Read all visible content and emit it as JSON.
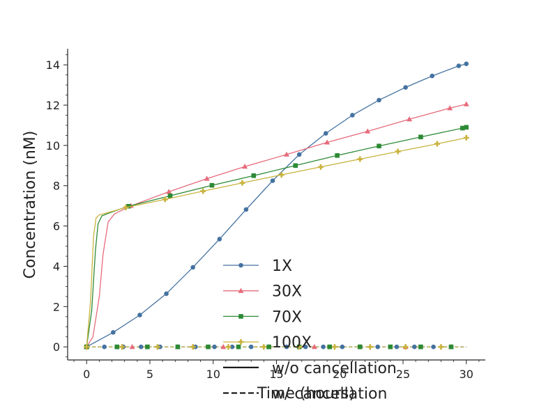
{
  "chart_data": {
    "type": "line",
    "xlabel": "Time (hours)",
    "ylabel": "Concentration (nM)",
    "xlim": [
      -1.5,
      31.5
    ],
    "ylim": [
      -0.65,
      14.8
    ],
    "xticks": [
      0,
      5,
      10,
      15,
      20,
      25,
      30
    ],
    "yticks": [
      0,
      2,
      4,
      6,
      8,
      10,
      12,
      14
    ],
    "x_minor_step": 1,
    "y_minor_step": 0.5,
    "grid": false,
    "legend_position": "lower-center",
    "series": [
      {
        "name": "1X",
        "color": "#4472a0",
        "marker": "circle",
        "x": [
          0,
          2.1,
          4.2,
          6.3,
          8.4,
          10.5,
          12.6,
          14.7,
          16.8,
          18.9,
          21,
          23.1,
          25.2,
          27.3,
          29.4,
          30
        ],
        "y": [
          0,
          0.72,
          1.58,
          2.64,
          3.95,
          5.35,
          6.82,
          8.25,
          9.55,
          10.6,
          11.5,
          12.25,
          12.88,
          13.45,
          13.95,
          14.05
        ]
      },
      {
        "name": "30X",
        "color": "#e66b7b",
        "marker": "triangle",
        "x": [
          0,
          0.5,
          1,
          1.3,
          1.7,
          2.2,
          3.5,
          6.5,
          9.5,
          12.5,
          15.8,
          19,
          22.2,
          25.5,
          28.7,
          30
        ],
        "y": [
          0,
          0.5,
          2.5,
          4.6,
          6.2,
          6.6,
          7,
          7.7,
          8.35,
          8.95,
          9.55,
          10.15,
          10.7,
          11.3,
          11.85,
          12.05
        ]
      },
      {
        "name": "70X",
        "color": "#2c8a35",
        "marker": "square",
        "x": [
          0,
          0.4,
          0.7,
          0.9,
          1.2,
          1.8,
          3.3,
          6.6,
          9.9,
          13.2,
          16.5,
          19.8,
          23.1,
          26.4,
          29.7,
          30
        ],
        "y": [
          0,
          1.8,
          4.8,
          6.1,
          6.5,
          6.65,
          6.98,
          7.5,
          8.02,
          8.5,
          9.0,
          9.5,
          9.97,
          10.42,
          10.86,
          10.9
        ]
      },
      {
        "name": "100X",
        "color": "#c9b33e",
        "marker": "plus",
        "x": [
          0,
          0.3,
          0.55,
          0.75,
          1,
          1.6,
          3.1,
          6.2,
          9.2,
          12.3,
          15.4,
          18.5,
          21.6,
          24.6,
          27.7,
          30
        ],
        "y": [
          0,
          2.2,
          5.5,
          6.4,
          6.55,
          6.65,
          6.92,
          7.32,
          7.73,
          8.14,
          8.54,
          8.93,
          9.32,
          9.7,
          10.08,
          10.38
        ]
      },
      {
        "name": "w/o cancellation",
        "color": "#000000",
        "marker": "none",
        "dash": "solid",
        "x": [
          0,
          30
        ],
        "y": [
          0,
          0
        ]
      },
      {
        "name": "w/ cancellation",
        "color": "#000000",
        "marker": "none",
        "dash": "dashed",
        "x": [
          0,
          30
        ],
        "y": [
          0,
          0
        ]
      }
    ],
    "cancellation_markers": {
      "1X": {
        "x": [
          0,
          1.4,
          2.9,
          4.3,
          5.8,
          7.2,
          8.6,
          10.1,
          11.5,
          13,
          14.4,
          15.8,
          17.3,
          18.7,
          20.2,
          21.6,
          23,
          24.5,
          25.9,
          27.4,
          28.8
        ],
        "y": 0
      },
      "30X": {
        "x": [
          0,
          3.6,
          7.2,
          10.8,
          14.4,
          18,
          21.6,
          25.2,
          28.8
        ],
        "y": 0
      },
      "70X": {
        "x": [
          0,
          2.4,
          4.8,
          7.2,
          9.6,
          12,
          14.4,
          16.8,
          19.2,
          21.6,
          24,
          26.4,
          28.8
        ],
        "y": 0
      },
      "100X": {
        "x": [
          0,
          2.8,
          5.6,
          8.4,
          11.2,
          14,
          16.8,
          19.6,
          22.4,
          25.2,
          28
        ],
        "y": 0
      }
    }
  }
}
